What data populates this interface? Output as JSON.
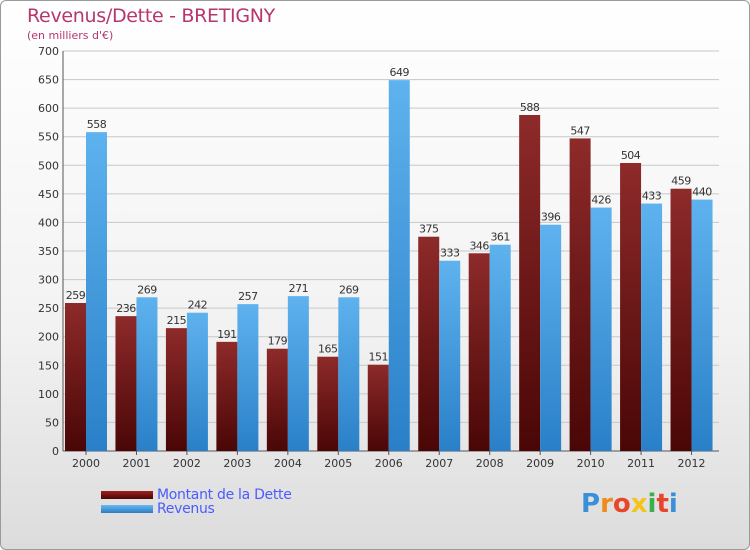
{
  "title": "Revenus/Dette - BRETIGNY",
  "subtitle": "(en milliers d'€)",
  "logo_text": "Proxiti",
  "chart_data": {
    "type": "bar",
    "categories": [
      "2000",
      "2001",
      "2002",
      "2003",
      "2004",
      "2005",
      "2006",
      "2007",
      "2008",
      "2009",
      "2010",
      "2011",
      "2012"
    ],
    "series": [
      {
        "name": "Montant de la Dette",
        "values": [
          259,
          236,
          215,
          191,
          179,
          165,
          151,
          375,
          346,
          588,
          547,
          504,
          459
        ],
        "color": "#7a1414"
      },
      {
        "name": "Revenus",
        "values": [
          558,
          269,
          242,
          257,
          271,
          269,
          649,
          333,
          361,
          396,
          426,
          433,
          440
        ],
        "color": "#4aa3e8"
      }
    ],
    "ylim": [
      0,
      700
    ],
    "yticks": [
      "0",
      "50",
      "100",
      "150",
      "200",
      "250",
      "300",
      "350",
      "400",
      "450",
      "500",
      "550",
      "600",
      "650",
      "700"
    ],
    "grid": true,
    "legend": "bottom-left"
  }
}
